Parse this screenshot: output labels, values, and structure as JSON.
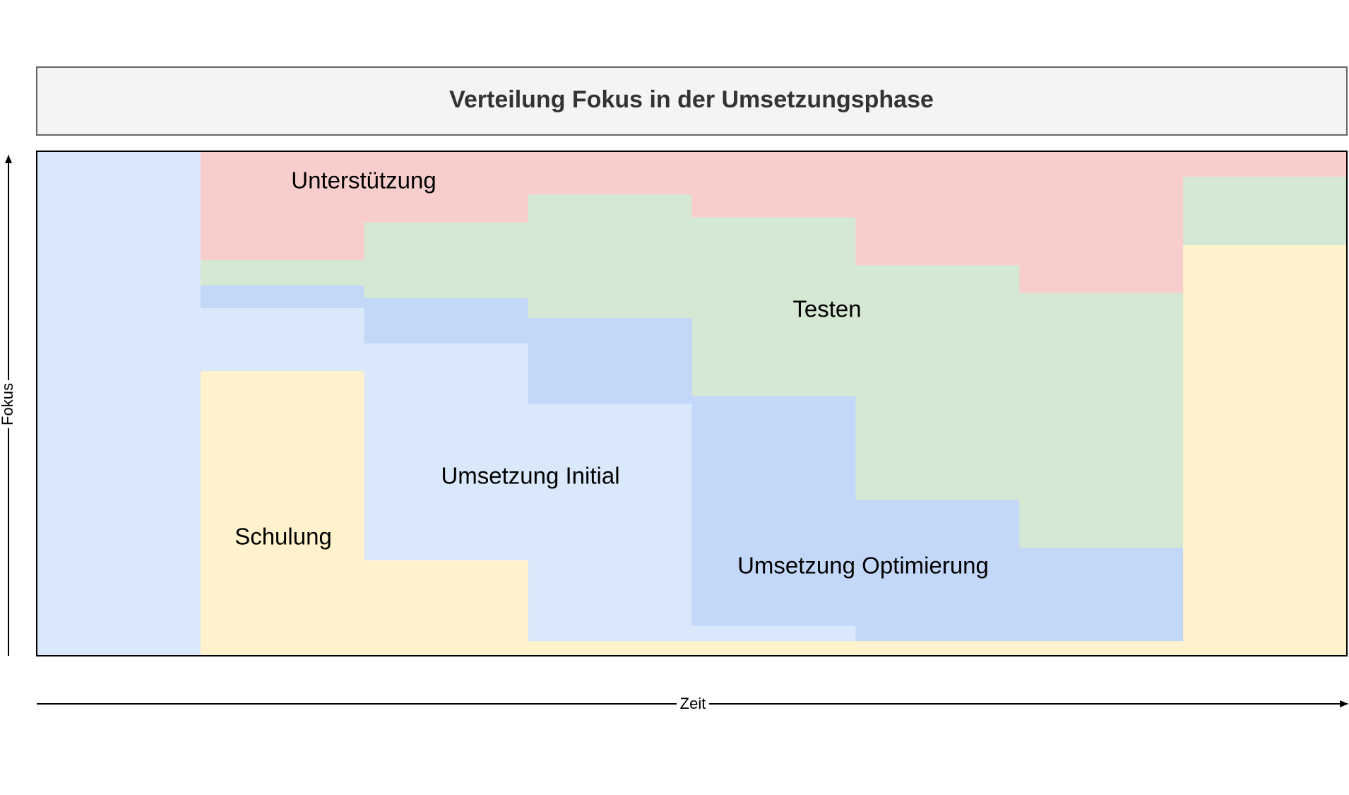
{
  "chart_data": {
    "type": "area",
    "title": "Verteilung Fokus in der Umsetzungsphase",
    "xlabel": "Zeit",
    "ylabel": "Fokus",
    "stacking": "100% stacked, stepwise per time segment",
    "x_segments": 8,
    "ylim": [
      0,
      1
    ],
    "grid": false,
    "legend": "none (labels placed inside regions)",
    "series": [
      {
        "name": "Schulung",
        "color": "#fff2cc",
        "values": [
          0.0,
          0.565,
          0.19,
          0.03,
          0.03,
          0.03,
          0.03,
          0.815
        ]
      },
      {
        "name": "Umsetzung Initial",
        "color": "#dae8fc",
        "values": [
          1.0,
          0.125,
          0.43,
          0.47,
          0.03,
          0.0,
          0.0,
          0.0
        ]
      },
      {
        "name": "Umsetzung Optimierung",
        "color": "#c3d7f8",
        "values": [
          0.0,
          0.045,
          0.09,
          0.17,
          0.455,
          0.28,
          0.185,
          0.0
        ]
      },
      {
        "name": "Testen",
        "color": "#d5e8d4",
        "values": [
          0.0,
          0.05,
          0.15,
          0.245,
          0.355,
          0.465,
          0.505,
          0.135
        ]
      },
      {
        "name": "Unterstützung",
        "color": "#f8cecc",
        "values": [
          0.0,
          0.215,
          0.14,
          0.085,
          0.13,
          0.225,
          0.28,
          0.05
        ]
      }
    ],
    "region_labels": [
      {
        "text": "Unterstützung"
      },
      {
        "text": "Testen"
      },
      {
        "text": "Umsetzung Initial"
      },
      {
        "text": "Schulung"
      },
      {
        "text": "Umsetzung Optimierung"
      }
    ]
  }
}
